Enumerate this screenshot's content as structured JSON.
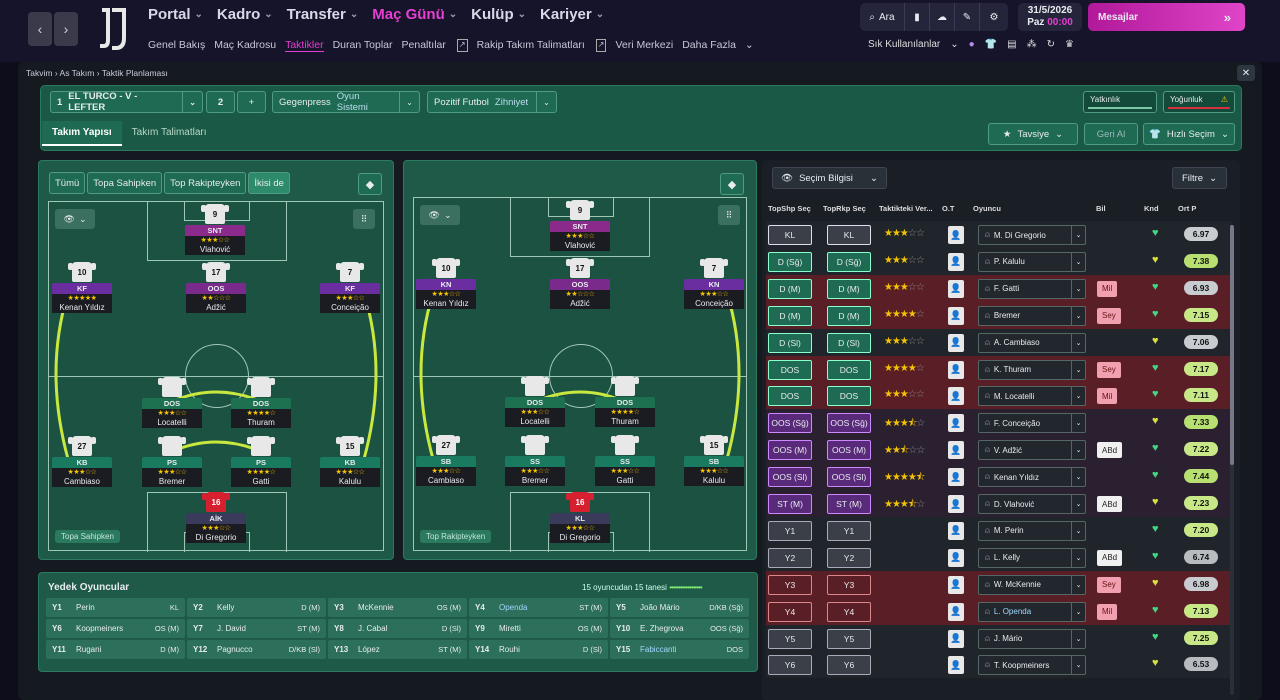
{
  "nav": {
    "items": [
      {
        "label": "Portal",
        "active": false
      },
      {
        "label": "Kadro",
        "active": false
      },
      {
        "label": "Transfer",
        "active": false
      },
      {
        "label": "Maç Günü",
        "active": true
      },
      {
        "label": "Kulüp",
        "active": false
      },
      {
        "label": "Kariyer",
        "active": false
      }
    ],
    "sub": [
      {
        "label": "Genel Bakış"
      },
      {
        "label": "Maç Kadrosu"
      },
      {
        "label": "Taktikler",
        "active": true
      },
      {
        "label": "Duran Toplar"
      },
      {
        "label": "Penaltılar",
        "ext": true
      },
      {
        "label": "Rakip Takım Talimatları",
        "ext": true
      },
      {
        "label": "Veri Merkezi"
      },
      {
        "label": "Daha Fazla",
        "dd": true
      }
    ]
  },
  "search": {
    "label": "Ara"
  },
  "quick": {
    "label": "Sık Kullanılanlar"
  },
  "date": {
    "date": "31/5/2026",
    "day": "Paz",
    "time": "00:00"
  },
  "messages": {
    "label": "Mesajlar"
  },
  "breadcrumb": {
    "a": "Takvim",
    "b": "As Takım",
    "c": "Taktik Planlaması"
  },
  "tactic": {
    "num": "1",
    "name": "EL TURCO - V - LEFTER",
    "num2": "2",
    "plus": "+",
    "style": "Gegenpress",
    "style_label": "Oyun Sistemi",
    "mentality": "Pozitif Futbol",
    "mentality_label": "Zihniyet",
    "meter1": "Yatkınlık",
    "meter2": "Yoğunluk"
  },
  "tabs": {
    "t1": "Takım Yapısı",
    "t2": "Takım Talimatları"
  },
  "buttons": {
    "advice": "Tavsiye",
    "undo": "Geri Al",
    "quick_select": "Hızlı Seçim",
    "select_info": "Seçim Bilgisi",
    "filter": "Filtre"
  },
  "filters": [
    "Tümü",
    "Topa Sahipken",
    "Top Rakipteyken",
    "İkisi de"
  ],
  "pitch_labels": {
    "left": "Topa Sahipken",
    "right": "Top Rakipteyken"
  },
  "left_players": [
    {
      "num": "9",
      "pos": "SNT",
      "stars": "★★★☆☆",
      "name": "Vlahović",
      "role": "st"
    },
    {
      "num": "10",
      "pos": "KF",
      "stars": "★★★★★",
      "name": "Kenan Yıldız",
      "role": "kf"
    },
    {
      "num": "17",
      "pos": "OOS",
      "stars": "★★☆☆☆",
      "name": "Adžić",
      "role": "oos"
    },
    {
      "num": "7",
      "pos": "KF",
      "stars": "★★★☆☆",
      "name": "Conceição",
      "role": "kf"
    },
    {
      "num": "",
      "pos": "DOS",
      "stars": "★★★☆☆",
      "name": "Locatelli",
      "role": "dos"
    },
    {
      "num": "",
      "pos": "DOS",
      "stars": "★★★★☆",
      "name": "Thuram",
      "role": "dos"
    },
    {
      "num": "27",
      "pos": "KB",
      "stars": "★★★☆☆",
      "name": "Cambiaso",
      "role": "d"
    },
    {
      "num": "",
      "pos": "PS",
      "stars": "★★★☆☆",
      "name": "Bremer",
      "role": "d"
    },
    {
      "num": "",
      "pos": "PS",
      "stars": "★★★★☆",
      "name": "Gatti",
      "role": "d"
    },
    {
      "num": "15",
      "pos": "KB",
      "stars": "★★★☆☆",
      "name": "Kalulu",
      "role": "d"
    },
    {
      "num": "16",
      "pos": "AİK",
      "stars": "★★★☆☆",
      "name": "Di Gregorio",
      "role": "gk"
    }
  ],
  "right_players": [
    {
      "num": "9",
      "pos": "SNT",
      "stars": "★★★☆☆",
      "name": "Vlahović",
      "role": "st"
    },
    {
      "num": "10",
      "pos": "KN",
      "stars": "★★★☆☆",
      "name": "Kenan Yıldız",
      "role": "kf"
    },
    {
      "num": "17",
      "pos": "OOS",
      "stars": "★★☆☆☆",
      "name": "Adžić",
      "role": "oos"
    },
    {
      "num": "7",
      "pos": "KN",
      "stars": "★★★☆☆",
      "name": "Conceição",
      "role": "kf"
    },
    {
      "num": "",
      "pos": "DOS",
      "stars": "★★★☆☆",
      "name": "Locatelli",
      "role": "dos"
    },
    {
      "num": "",
      "pos": "DOS",
      "stars": "★★★★☆",
      "name": "Thuram",
      "role": "dos"
    },
    {
      "num": "27",
      "pos": "SB",
      "stars": "★★★☆☆",
      "name": "Cambiaso",
      "role": "d"
    },
    {
      "num": "",
      "pos": "SS",
      "stars": "★★★☆☆",
      "name": "Bremer",
      "role": "d"
    },
    {
      "num": "",
      "pos": "SS",
      "stars": "★★★☆☆",
      "name": "Gatti",
      "role": "d"
    },
    {
      "num": "15",
      "pos": "SB",
      "stars": "★★★☆☆",
      "name": "Kalulu",
      "role": "d"
    },
    {
      "num": "16",
      "pos": "KL",
      "stars": "★★★☆☆",
      "name": "Di Gregorio",
      "role": "gk"
    }
  ],
  "subs": {
    "title": "Yedek Oyuncular",
    "count": "15 oyuncudan 15 tanesi",
    "items": [
      {
        "n": "Y1",
        "name": "Perin",
        "pos": "KL"
      },
      {
        "n": "Y2",
        "name": "Kelly",
        "pos": "D (M)"
      },
      {
        "n": "Y3",
        "name": "McKennie",
        "pos": "OS (M)"
      },
      {
        "n": "Y4",
        "name": "Openda",
        "pos": "ST (M)",
        "hl": true
      },
      {
        "n": "Y5",
        "name": "João Mário",
        "pos": "D/KB (Sğ)"
      },
      {
        "n": "Y6",
        "name": "Koopmeiners",
        "pos": "OS (M)"
      },
      {
        "n": "Y7",
        "name": "J. David",
        "pos": "ST (M)"
      },
      {
        "n": "Y8",
        "name": "J. Cabal",
        "pos": "D (Sl)"
      },
      {
        "n": "Y9",
        "name": "Miretti",
        "pos": "OS (M)"
      },
      {
        "n": "Y10",
        "name": "E. Zhegrova",
        "pos": "OOS (Sğ)"
      },
      {
        "n": "Y11",
        "name": "Rugani",
        "pos": "D (M)"
      },
      {
        "n": "Y12",
        "name": "Pagnucco",
        "pos": "D/KB (Sl)"
      },
      {
        "n": "Y13",
        "name": "López",
        "pos": "ST (M)"
      },
      {
        "n": "Y14",
        "name": "Rouhi",
        "pos": "D (Sl)"
      },
      {
        "n": "Y15",
        "name": "Fabiccanti",
        "pos": "DOS",
        "hl": true
      }
    ]
  },
  "table": {
    "headers": [
      "TopShp Seç",
      "TopRkp Seç",
      "Taktikteki Ver...",
      "O.T",
      "Oyuncu",
      "Bil",
      "Knd",
      "Ort P"
    ],
    "rows": [
      {
        "a": "KL",
        "b": "KL",
        "stars": 3,
        "name": "M. Di Gregorio",
        "tag": "",
        "rating": "6.97",
        "type": "gk"
      },
      {
        "a": "D (Sğ)",
        "b": "D (Sğ)",
        "stars": 3,
        "name": "P. Kalulu",
        "tag": "",
        "rating": "7.38",
        "type": "d"
      },
      {
        "a": "D (M)",
        "b": "D (M)",
        "stars": 3,
        "name": "F. Gatti",
        "tag": "Mil",
        "rating": "6.93",
        "type": "dr"
      },
      {
        "a": "D (M)",
        "b": "D (M)",
        "stars": 4,
        "name": "Bremer",
        "tag": "Sey",
        "rating": "7.15",
        "type": "dr"
      },
      {
        "a": "D (Sl)",
        "b": "D (Sl)",
        "stars": 3,
        "name": "A. Cambiaso",
        "tag": "",
        "rating": "7.06",
        "type": "d"
      },
      {
        "a": "DOS",
        "b": "DOS",
        "stars": 4,
        "name": "K. Thuram",
        "tag": "Sey",
        "rating": "7.17",
        "type": "dosr"
      },
      {
        "a": "DOS",
        "b": "DOS",
        "stars": 3,
        "name": "M. Locatelli",
        "tag": "Mil",
        "rating": "7.11",
        "type": "dosr"
      },
      {
        "a": "OOS (Sğ)",
        "b": "OOS (Sğ)",
        "stars": 3.5,
        "name": "F. Conceição",
        "tag": "",
        "rating": "7.33",
        "type": "oos"
      },
      {
        "a": "OOS (M)",
        "b": "OOS (M)",
        "stars": 2.5,
        "name": "V. Adžić",
        "tag": "ABd",
        "rating": "7.22",
        "type": "oos"
      },
      {
        "a": "OOS (Sl)",
        "b": "OOS (Sl)",
        "stars": 4.5,
        "name": "Kenan Yıldız",
        "tag": "",
        "rating": "7.44",
        "type": "oos"
      },
      {
        "a": "ST (M)",
        "b": "ST (M)",
        "stars": 3.5,
        "name": "D. Vlahović",
        "tag": "ABd",
        "rating": "7.23",
        "type": "st"
      },
      {
        "a": "Y1",
        "b": "Y1",
        "stars": 0,
        "name": "M. Perin",
        "tag": "",
        "rating": "7.20",
        "type": "y"
      },
      {
        "a": "Y2",
        "b": "Y2",
        "stars": 0,
        "name": "L. Kelly",
        "tag": "ABd",
        "rating": "6.74",
        "type": "y"
      },
      {
        "a": "Y3",
        "b": "Y3",
        "stars": 0,
        "name": "W. McKennie",
        "tag": "Sey",
        "rating": "6.98",
        "type": "yr"
      },
      {
        "a": "Y4",
        "b": "Y4",
        "stars": 0,
        "name": "L. Openda",
        "tag": "Mil",
        "rating": "7.13",
        "type": "yr"
      },
      {
        "a": "Y5",
        "b": "Y5",
        "stars": 0,
        "name": "J. Mário",
        "tag": "",
        "rating": "7.25",
        "type": "y"
      },
      {
        "a": "Y6",
        "b": "Y6",
        "stars": 0,
        "name": "T. Koopmeiners",
        "tag": "",
        "rating": "6.53",
        "type": "y"
      }
    ]
  }
}
